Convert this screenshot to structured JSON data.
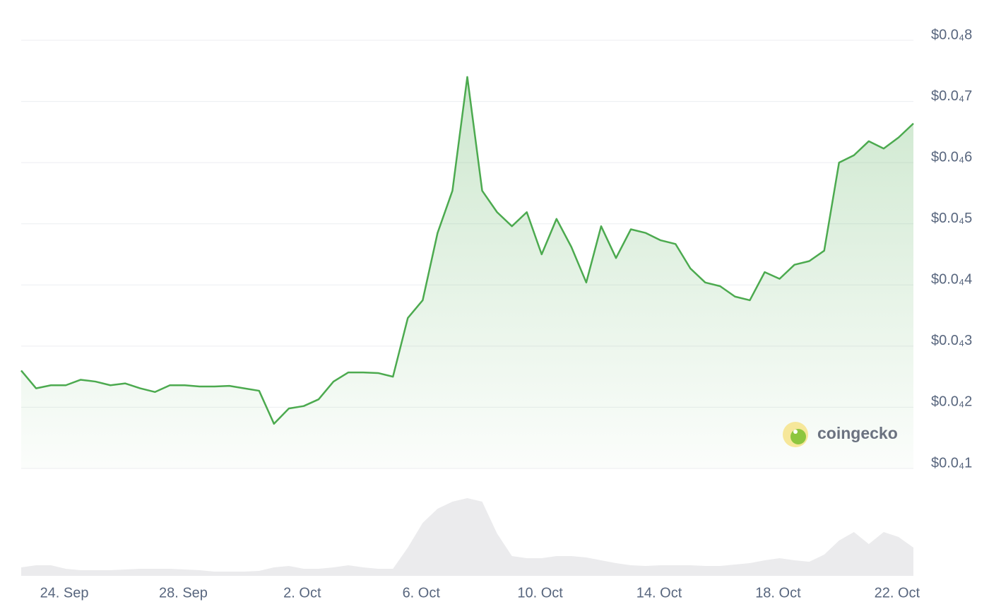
{
  "chart_data": {
    "type": "line",
    "color": "#4caa4f",
    "grid": true,
    "watermark": "coingecko",
    "values": [
      2.6e-05,
      2.31e-05,
      2.36e-05,
      2.36e-05,
      2.45e-05,
      2.42e-05,
      2.36e-05,
      2.39e-05,
      2.31e-05,
      2.25e-05,
      2.36e-05,
      2.36e-05,
      2.34e-05,
      2.34e-05,
      2.35e-05,
      2.31e-05,
      2.27e-05,
      1.73e-05,
      1.98e-05,
      2.02e-05,
      2.13e-05,
      2.42e-05,
      2.57e-05,
      2.57e-05,
      2.56e-05,
      2.5e-05,
      3.46e-05,
      3.75e-05,
      4.85e-05,
      5.54e-05,
      7.4e-05,
      5.54e-05,
      5.19e-05,
      4.96e-05,
      5.19e-05,
      4.5e-05,
      5.08e-05,
      4.62e-05,
      4.04e-05,
      4.96e-05,
      4.44e-05,
      4.91e-05,
      4.85e-05,
      4.73e-05,
      4.67e-05,
      4.27e-05,
      4.04e-05,
      3.98e-05,
      3.81e-05,
      3.75e-05,
      4.21e-05,
      4.1e-05,
      4.33e-05,
      4.39e-05,
      4.56e-05,
      6e-05,
      6.12e-05,
      6.35e-05,
      6.23e-05,
      6.41e-05,
      6.64e-05
    ],
    "volume": [
      12,
      15,
      15,
      10,
      8,
      8,
      8,
      9,
      10,
      10,
      10,
      9,
      8,
      6,
      6,
      6,
      7,
      12,
      14,
      10,
      10,
      12,
      15,
      12,
      10,
      10,
      40,
      75,
      95,
      105,
      110,
      105,
      60,
      28,
      25,
      25,
      28,
      28,
      26,
      22,
      18,
      15,
      14,
      15,
      15,
      15,
      14,
      14,
      16,
      18,
      22,
      25,
      22,
      20,
      30,
      50,
      62,
      45,
      62,
      55,
      40
    ],
    "volume_color": "#ebebed",
    "xlim": [
      0,
      60
    ],
    "xticks": [
      {
        "value": 2.9,
        "label": "24. Sep"
      },
      {
        "value": 10.9,
        "label": "28. Sep"
      },
      {
        "value": 18.9,
        "label": "2. Oct"
      },
      {
        "value": 26.9,
        "label": "6. Oct"
      },
      {
        "value": 34.9,
        "label": "10. Oct"
      },
      {
        "value": 42.9,
        "label": "14. Oct"
      },
      {
        "value": 50.9,
        "label": "18. Oct"
      },
      {
        "value": 58.9,
        "label": "22. Oct"
      }
    ],
    "ylim": [
      1e-05,
      8e-05
    ],
    "yticks": [
      {
        "value": 1e-05,
        "label": "$0.0₄1"
      },
      {
        "value": 2e-05,
        "label": "$0.0₄2"
      },
      {
        "value": 3e-05,
        "label": "$0.0₄3"
      },
      {
        "value": 4e-05,
        "label": "$0.0₄4"
      },
      {
        "value": 5e-05,
        "label": "$0.0₄5"
      },
      {
        "value": 6e-05,
        "label": "$0.0₄6"
      },
      {
        "value": 7e-05,
        "label": "$0.0₄7"
      },
      {
        "value": 8e-05,
        "label": "$0.0₄8"
      }
    ]
  }
}
